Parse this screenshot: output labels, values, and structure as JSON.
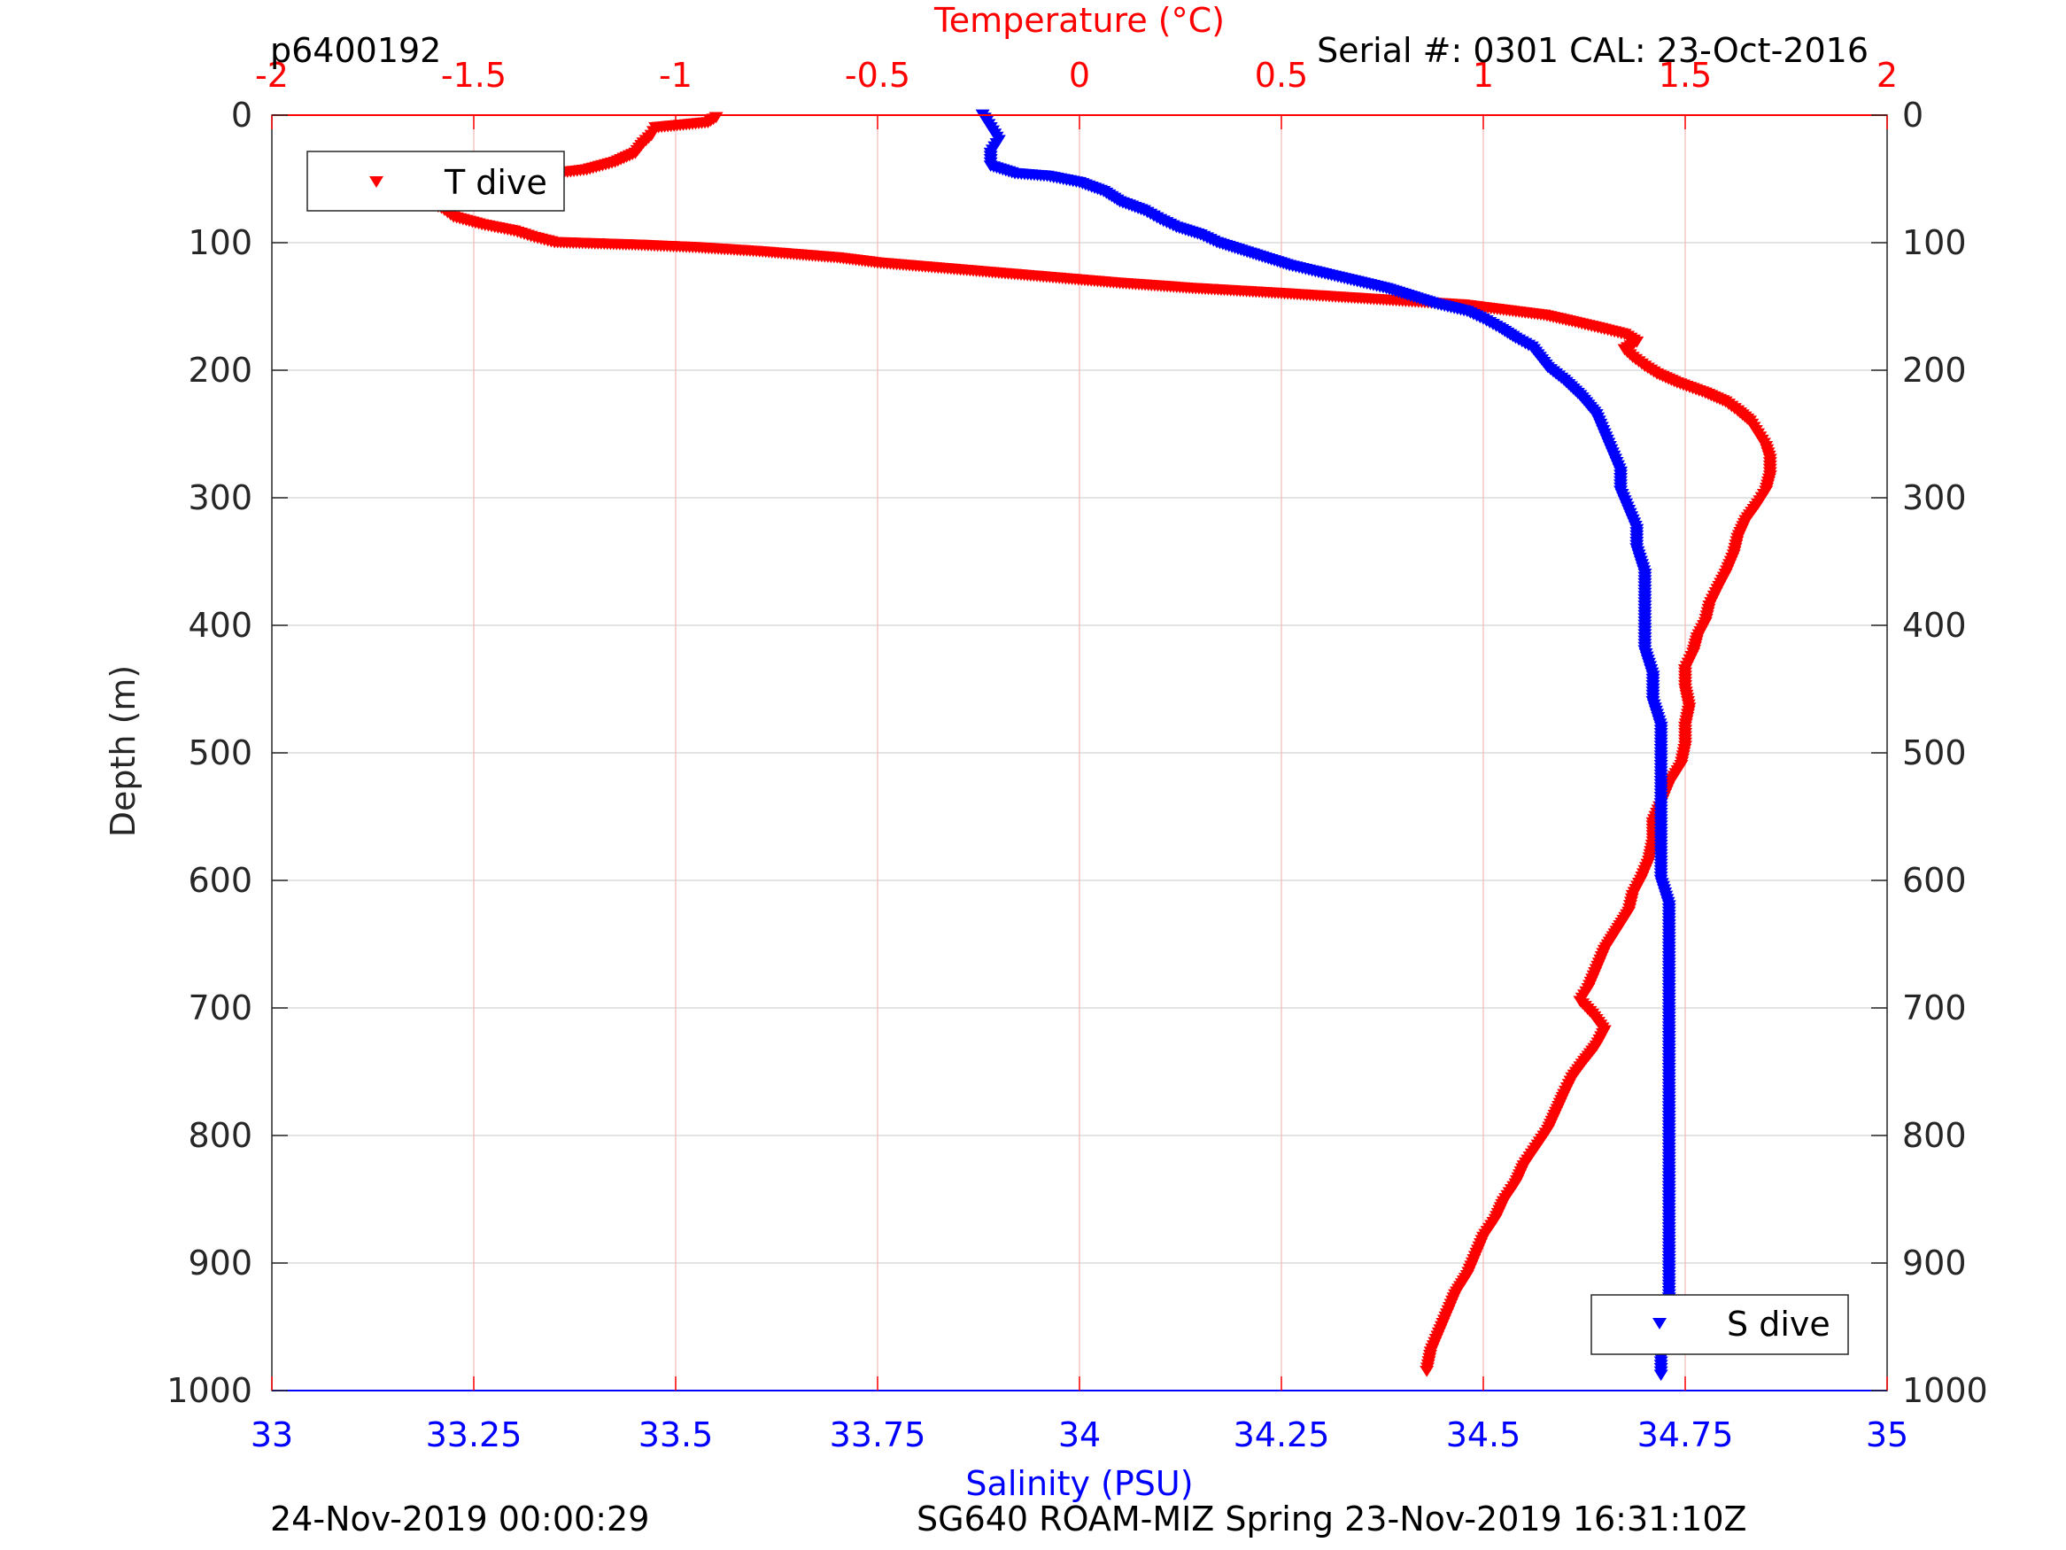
{
  "header": {
    "profile_id": "p6400192",
    "serial_cal": "Serial #: 0301  CAL: 23-Oct-2016"
  },
  "footer": {
    "left": "24-Nov-2019 00:00:29",
    "right": "SG640 ROAM-MIZ Spring 23-Nov-2019 16:31:10Z"
  },
  "colors": {
    "temperature": "#ff0000",
    "salinity": "#0000ff",
    "axis": "#262626",
    "grid": "#dcdcdc",
    "temp_grid": "#f4b9b9"
  },
  "chart_data": {
    "type": "scatter",
    "xlabel_top": "Temperature (°C)",
    "xlabel_bottom": "Salinity (PSU)",
    "ylabel": "Depth (m)",
    "temperature_axis": {
      "lim": [
        -2,
        2
      ],
      "ticks": [
        -2,
        -1.5,
        -1,
        -0.5,
        0,
        0.5,
        1,
        1.5,
        2
      ],
      "tick_labels": [
        "-2",
        "-1.5",
        "-1",
        "-0.5",
        "0",
        "0.5",
        "1",
        "1.5",
        "2"
      ]
    },
    "salinity_axis": {
      "lim": [
        33,
        35
      ],
      "ticks": [
        33,
        33.25,
        33.5,
        33.75,
        34,
        34.25,
        34.5,
        34.75,
        35
      ],
      "tick_labels": [
        "33",
        "33.25",
        "33.5",
        "33.75",
        "34",
        "34.25",
        "34.5",
        "34.75",
        "35"
      ]
    },
    "depth_axis": {
      "lim": [
        0,
        1000
      ],
      "reversed": true,
      "ticks": [
        0,
        100,
        200,
        300,
        400,
        500,
        600,
        700,
        800,
        900,
        1000
      ],
      "tick_labels": [
        "0",
        "100",
        "200",
        "300",
        "400",
        "500",
        "600",
        "700",
        "800",
        "900",
        "1000"
      ]
    },
    "grid": true,
    "marker": "triangle-down",
    "legend": [
      {
        "name": "T dive",
        "color": "#ff0000",
        "placement": "top-left"
      },
      {
        "name": "S dive",
        "color": "#0000ff",
        "placement": "bottom-right"
      }
    ],
    "series": [
      {
        "name": "T dive",
        "axis": "temperature",
        "color": "#ff0000",
        "points": [
          [
            -0.9,
            2
          ],
          [
            -0.92,
            6
          ],
          [
            -1.05,
            10
          ],
          [
            -1.06,
            16
          ],
          [
            -1.08,
            22
          ],
          [
            -1.1,
            30
          ],
          [
            -1.15,
            37
          ],
          [
            -1.22,
            43
          ],
          [
            -1.3,
            46
          ],
          [
            -1.42,
            47
          ],
          [
            -1.55,
            49
          ],
          [
            -1.63,
            52
          ],
          [
            -1.65,
            57
          ],
          [
            -1.67,
            63
          ],
          [
            -1.62,
            68
          ],
          [
            -1.58,
            73
          ],
          [
            -1.55,
            80
          ],
          [
            -1.48,
            86
          ],
          [
            -1.4,
            91
          ],
          [
            -1.35,
            96
          ],
          [
            -1.3,
            100
          ],
          [
            -1.1,
            102
          ],
          [
            -0.95,
            104
          ],
          [
            -0.8,
            107
          ],
          [
            -0.6,
            112
          ],
          [
            -0.5,
            116
          ],
          [
            -0.35,
            120
          ],
          [
            -0.2,
            124
          ],
          [
            -0.05,
            128
          ],
          [
            0.1,
            132
          ],
          [
            0.28,
            136
          ],
          [
            0.5,
            140
          ],
          [
            0.65,
            143
          ],
          [
            0.8,
            146
          ],
          [
            0.95,
            149
          ],
          [
            1.05,
            153
          ],
          [
            1.15,
            157
          ],
          [
            1.22,
            162
          ],
          [
            1.3,
            168
          ],
          [
            1.35,
            172
          ],
          [
            1.38,
            178
          ],
          [
            1.35,
            184
          ],
          [
            1.37,
            190
          ],
          [
            1.4,
            197
          ],
          [
            1.43,
            203
          ],
          [
            1.48,
            210
          ],
          [
            1.55,
            218
          ],
          [
            1.6,
            225
          ],
          [
            1.63,
            232
          ],
          [
            1.66,
            240
          ],
          [
            1.68,
            250
          ],
          [
            1.7,
            260
          ],
          [
            1.71,
            270
          ],
          [
            1.71,
            283
          ],
          [
            1.7,
            295
          ],
          [
            1.68,
            305
          ],
          [
            1.65,
            318
          ],
          [
            1.63,
            332
          ],
          [
            1.62,
            345
          ],
          [
            1.6,
            360
          ],
          [
            1.58,
            372
          ],
          [
            1.56,
            385
          ],
          [
            1.55,
            398
          ],
          [
            1.53,
            410
          ],
          [
            1.52,
            422
          ],
          [
            1.5,
            435
          ],
          [
            1.5,
            450
          ],
          [
            1.51,
            465
          ],
          [
            1.5,
            480
          ],
          [
            1.5,
            495
          ],
          [
            1.49,
            510
          ],
          [
            1.46,
            525
          ],
          [
            1.44,
            540
          ],
          [
            1.42,
            555
          ],
          [
            1.42,
            570
          ],
          [
            1.41,
            585
          ],
          [
            1.39,
            600
          ],
          [
            1.37,
            612
          ],
          [
            1.36,
            625
          ],
          [
            1.33,
            640
          ],
          [
            1.3,
            655
          ],
          [
            1.28,
            670
          ],
          [
            1.26,
            685
          ],
          [
            1.24,
            695
          ],
          [
            1.27,
            705
          ],
          [
            1.3,
            718
          ],
          [
            1.28,
            730
          ],
          [
            1.25,
            742
          ],
          [
            1.22,
            755
          ],
          [
            1.2,
            768
          ],
          [
            1.18,
            782
          ],
          [
            1.16,
            796
          ],
          [
            1.13,
            810
          ],
          [
            1.1,
            824
          ],
          [
            1.08,
            838
          ],
          [
            1.05,
            852
          ],
          [
            1.03,
            866
          ],
          [
            1.0,
            880
          ],
          [
            0.98,
            895
          ],
          [
            0.96,
            910
          ],
          [
            0.93,
            925
          ],
          [
            0.91,
            940
          ],
          [
            0.89,
            955
          ],
          [
            0.87,
            970
          ],
          [
            0.86,
            985
          ]
        ]
      },
      {
        "name": "S dive",
        "axis": "salinity",
        "color": "#0000ff",
        "points": [
          [
            33.88,
            0
          ],
          [
            33.89,
            10
          ],
          [
            33.9,
            20
          ],
          [
            33.89,
            30
          ],
          [
            33.89,
            40
          ],
          [
            33.92,
            46
          ],
          [
            33.96,
            48
          ],
          [
            34.0,
            53
          ],
          [
            34.03,
            60
          ],
          [
            34.05,
            68
          ],
          [
            34.08,
            75
          ],
          [
            34.1,
            82
          ],
          [
            34.12,
            88
          ],
          [
            34.15,
            94
          ],
          [
            34.17,
            100
          ],
          [
            34.2,
            106
          ],
          [
            34.23,
            112
          ],
          [
            34.26,
            118
          ],
          [
            34.3,
            124
          ],
          [
            34.34,
            130
          ],
          [
            34.38,
            136
          ],
          [
            34.41,
            142
          ],
          [
            34.44,
            148
          ],
          [
            34.48,
            154
          ],
          [
            34.5,
            160
          ],
          [
            34.52,
            167
          ],
          [
            34.54,
            175
          ],
          [
            34.56,
            182
          ],
          [
            34.57,
            190
          ],
          [
            34.58,
            198
          ],
          [
            34.6,
            208
          ],
          [
            34.62,
            220
          ],
          [
            34.64,
            235
          ],
          [
            34.65,
            250
          ],
          [
            34.66,
            265
          ],
          [
            34.67,
            280
          ],
          [
            34.67,
            295
          ],
          [
            34.68,
            310
          ],
          [
            34.69,
            325
          ],
          [
            34.69,
            340
          ],
          [
            34.7,
            360
          ],
          [
            34.7,
            380
          ],
          [
            34.7,
            400
          ],
          [
            34.7,
            420
          ],
          [
            34.71,
            440
          ],
          [
            34.71,
            460
          ],
          [
            34.72,
            480
          ],
          [
            34.72,
            500
          ],
          [
            34.72,
            520
          ],
          [
            34.72,
            540
          ],
          [
            34.72,
            560
          ],
          [
            34.72,
            580
          ],
          [
            34.72,
            600
          ],
          [
            34.73,
            620
          ],
          [
            34.73,
            640
          ],
          [
            34.73,
            660
          ],
          [
            34.73,
            680
          ],
          [
            34.73,
            700
          ],
          [
            34.73,
            715
          ],
          [
            34.73,
            730
          ],
          [
            34.73,
            750
          ],
          [
            34.73,
            770
          ],
          [
            34.73,
            790
          ],
          [
            34.73,
            810
          ],
          [
            34.73,
            830
          ],
          [
            34.73,
            850
          ],
          [
            34.73,
            870
          ],
          [
            34.73,
            890
          ],
          [
            34.73,
            910
          ],
          [
            34.73,
            930
          ],
          [
            34.73,
            950
          ],
          [
            34.72,
            970
          ],
          [
            34.72,
            988
          ]
        ]
      }
    ]
  }
}
